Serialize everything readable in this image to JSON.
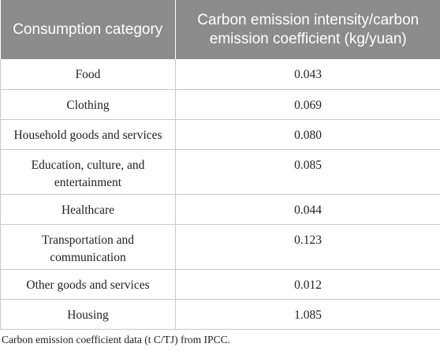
{
  "table": {
    "headers": [
      "Consumption category",
      "Carbon emission intensity/carbon emission coefficient (kg/yuan)"
    ],
    "rows": [
      {
        "category": "Food",
        "value": "0.043"
      },
      {
        "category": "Clothing",
        "value": "0.069"
      },
      {
        "category": "Household goods and services",
        "value": "0.080"
      },
      {
        "category": "Education, culture, and entertainment",
        "value": "0.085"
      },
      {
        "category": "Healthcare",
        "value": "0.044"
      },
      {
        "category": "Transportation and communication",
        "value": "0.123"
      },
      {
        "category": "Other goods and services",
        "value": "0.012"
      },
      {
        "category": "Housing",
        "value": "1.085"
      }
    ]
  },
  "footnote": "Carbon emission coefficient data (t C/TJ) from IPCC.",
  "colors": {
    "header_bg": "#8c8c8c",
    "header_text": "#ffffff",
    "grid": "#c8c8c8"
  }
}
